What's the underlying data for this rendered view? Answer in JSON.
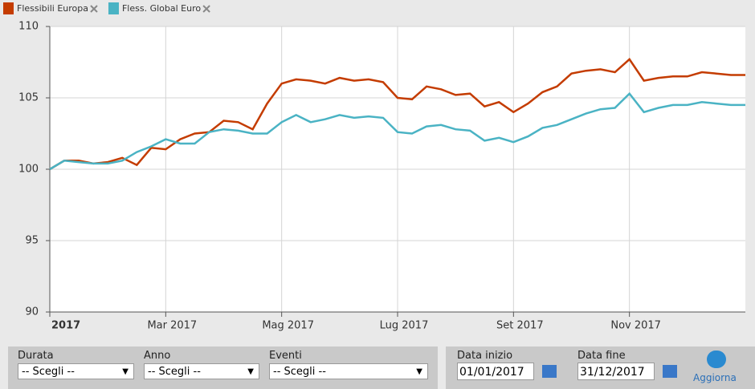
{
  "chart_data": {
    "type": "line",
    "categories": [
      "2017",
      null,
      null,
      null,
      null,
      null,
      null,
      null,
      "Mar 2017",
      null,
      null,
      null,
      null,
      null,
      null,
      null,
      "Mag 2017",
      null,
      null,
      null,
      null,
      null,
      null,
      null,
      "Lug 2017",
      null,
      null,
      null,
      null,
      null,
      null,
      null,
      "Set 2017",
      null,
      null,
      null,
      null,
      null,
      null,
      null,
      "Nov 2017",
      null,
      null,
      null,
      null,
      null,
      null,
      null,
      null
    ],
    "series": [
      {
        "name": "Flessibili Europa",
        "color": "#c43c00",
        "values": [
          100.0,
          100.6,
          100.6,
          100.4,
          100.5,
          100.8,
          100.3,
          101.5,
          101.4,
          102.1,
          102.5,
          102.6,
          103.4,
          103.3,
          102.8,
          104.6,
          106.0,
          106.3,
          106.2,
          106.0,
          106.4,
          106.2,
          106.3,
          106.1,
          105.0,
          104.9,
          105.8,
          105.6,
          105.2,
          105.3,
          104.4,
          104.7,
          104.0,
          104.6,
          105.4,
          105.8,
          106.7,
          106.9,
          107.0,
          106.8,
          107.7,
          106.2,
          106.4,
          106.5,
          106.5,
          106.8,
          106.7,
          106.6,
          106.6
        ]
      },
      {
        "name": "Flessibili Global Euro",
        "color": "#4ab3c4",
        "values": [
          100.0,
          100.6,
          100.5,
          100.4,
          100.4,
          100.6,
          101.2,
          101.6,
          102.1,
          101.8,
          101.8,
          102.6,
          102.8,
          102.7,
          102.5,
          102.5,
          103.3,
          103.8,
          103.3,
          103.5,
          103.8,
          103.6,
          103.7,
          103.6,
          102.6,
          102.5,
          103.0,
          103.1,
          102.8,
          102.7,
          102.0,
          102.2,
          101.9,
          102.3,
          102.9,
          103.1,
          103.5,
          103.9,
          104.2,
          104.3,
          105.3,
          104.0,
          104.3,
          104.5,
          104.5,
          104.7,
          104.6,
          104.5,
          104.5
        ]
      }
    ],
    "legend_names": [
      "Flessibili Europa",
      "Fless. Global Euro"
    ],
    "ylim": [
      90,
      110
    ],
    "yticks": [
      90,
      95,
      100,
      105,
      110
    ],
    "grid": true
  },
  "filters": [
    {
      "label": "Durata",
      "value": "-- Scegli --"
    },
    {
      "label": "Anno",
      "value": "-- Scegli --"
    },
    {
      "label": "Eventi",
      "value": "-- Scegli --"
    }
  ],
  "dates": [
    {
      "label": "Data inizio",
      "value": "01/01/2017"
    },
    {
      "label": "Data fine",
      "value": "31/12/2017"
    }
  ],
  "refresh": "Aggiorna"
}
